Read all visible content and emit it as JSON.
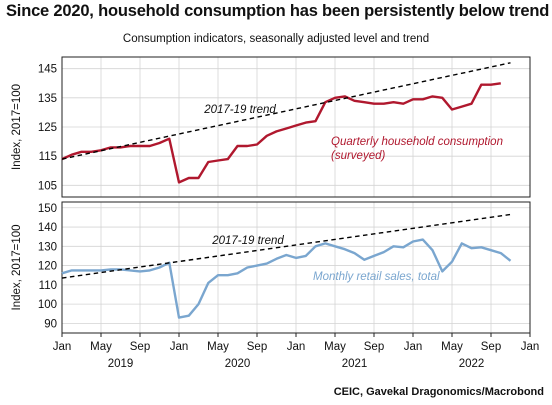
{
  "header": {
    "title": "Since 2020, household consumption has been persistently below trend",
    "subtitle": "Consumption indicators, seasonally adjusted level and trend"
  },
  "footer": {
    "source": "CEIC, Gavekal Dragonomics/Macrobond"
  },
  "colors": {
    "household": "#b0182e",
    "retail": "#7aa6cf",
    "trend": "#000000",
    "grid": "#d4d4d4"
  },
  "chart_data": [
    {
      "type": "line",
      "ylabel": "Index, 2017=100",
      "ylim": [
        101,
        149
      ],
      "yticks": [
        105,
        115,
        125,
        135,
        145
      ],
      "grid": true,
      "series": [
        {
          "name": "Quarterly household consumption (surveyed)",
          "label_lines": [
            "Quarterly household consumption",
            "(surveyed)"
          ],
          "x": [
            "2019-01",
            "2019-02",
            "2019-03",
            "2019-04",
            "2019-05",
            "2019-06",
            "2019-07",
            "2019-08",
            "2019-09",
            "2019-10",
            "2019-11",
            "2019-12",
            "2020-01",
            "2020-02",
            "2020-03",
            "2020-04",
            "2020-05",
            "2020-06",
            "2020-07",
            "2020-08",
            "2020-09",
            "2020-10",
            "2020-11",
            "2020-12",
            "2021-01",
            "2021-02",
            "2021-03",
            "2021-04",
            "2021-05",
            "2021-06",
            "2021-07",
            "2021-08",
            "2021-09",
            "2021-10",
            "2021-11",
            "2021-12",
            "2022-01",
            "2022-02",
            "2022-03",
            "2022-04",
            "2022-05",
            "2022-06",
            "2022-07",
            "2022-08",
            "2022-09",
            "2022-10"
          ],
          "values": [
            114,
            115.5,
            116.5,
            116.5,
            117,
            118,
            118,
            118.5,
            118.5,
            118.5,
            119.5,
            121,
            106,
            107.5,
            107.5,
            113,
            113.5,
            114,
            118.5,
            118.5,
            119,
            122,
            123.5,
            124.5,
            125.5,
            126.5,
            127,
            133.5,
            135,
            135.5,
            134,
            133.5,
            133,
            133,
            133.5,
            133,
            134.5,
            134.5,
            135.5,
            135,
            131,
            132,
            133,
            139.5,
            139.5,
            140
          ]
        },
        {
          "name": "2017-19 trend",
          "label": "2017-19 trend",
          "style": "dashed",
          "x": [
            "2019-01",
            "2022-11"
          ],
          "values": [
            114,
            147
          ]
        }
      ]
    },
    {
      "type": "line",
      "ylabel": "Index, 2017=100",
      "ylim": [
        85,
        153
      ],
      "yticks": [
        90,
        100,
        110,
        120,
        130,
        140,
        150
      ],
      "grid": true,
      "xlim": [
        "2019-01",
        "2023-01"
      ],
      "xticks": [
        "Jan",
        "May",
        "Sep",
        "Jan",
        "May",
        "Sep",
        "Jan",
        "May",
        "Sep",
        "Jan",
        "May",
        "Sep",
        "Jan"
      ],
      "years": [
        "2019",
        "2020",
        "2021",
        "2022"
      ],
      "series": [
        {
          "name": "Monthly retail sales, total",
          "label": "Monthly retail sales, total",
          "x": [
            "2019-01",
            "2019-02",
            "2019-03",
            "2019-04",
            "2019-05",
            "2019-06",
            "2019-07",
            "2019-08",
            "2019-09",
            "2019-10",
            "2019-11",
            "2019-12",
            "2020-01",
            "2020-02",
            "2020-03",
            "2020-04",
            "2020-05",
            "2020-06",
            "2020-07",
            "2020-08",
            "2020-09",
            "2020-10",
            "2020-11",
            "2020-12",
            "2021-01",
            "2021-02",
            "2021-03",
            "2021-04",
            "2021-05",
            "2021-06",
            "2021-07",
            "2021-08",
            "2021-09",
            "2021-10",
            "2021-11",
            "2021-12",
            "2022-01",
            "2022-02",
            "2022-03",
            "2022-04",
            "2022-05",
            "2022-06",
            "2022-07",
            "2022-08",
            "2022-09",
            "2022-10",
            "2022-11"
          ],
          "values": [
            116,
            117.5,
            117.5,
            117.5,
            117.5,
            118,
            118,
            117.5,
            117,
            117.5,
            119,
            121.5,
            93,
            94,
            100,
            111,
            115,
            115,
            116,
            119,
            120,
            121,
            123.5,
            125.5,
            124,
            125,
            130,
            131.5,
            130,
            128.5,
            126.5,
            123,
            125,
            127,
            130,
            129.5,
            132.5,
            133.5,
            128,
            117,
            122,
            131.5,
            129,
            129.5,
            128,
            126.5,
            122.5
          ]
        },
        {
          "name": "2017-19 trend",
          "label": "2017-19 trend",
          "style": "dashed",
          "x": [
            "2019-01",
            "2022-11"
          ],
          "values": [
            113.5,
            146.5
          ]
        }
      ]
    }
  ]
}
